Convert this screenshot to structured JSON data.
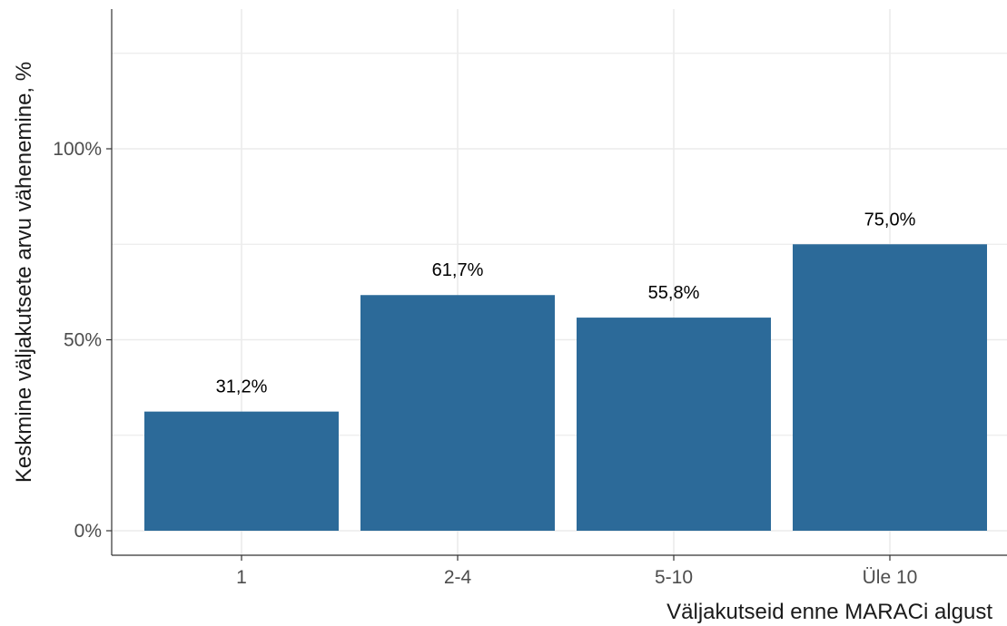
{
  "chart_data": {
    "type": "bar",
    "title": "",
    "xlabel": "Väljakutseid enne MARACi algust",
    "ylabel": "Keskmine väljakutsete arvu vähenemine, %",
    "categories": [
      "1",
      "2-4",
      "5-10",
      "Üle 10"
    ],
    "values": [
      31.2,
      61.7,
      55.8,
      75.0
    ],
    "data_labels": [
      "31,2%",
      "61,7%",
      "55,8%",
      "75,0%"
    ],
    "ylim": [
      0,
      135
    ],
    "yticks": [
      0,
      50,
      100
    ],
    "ytick_labels": [
      "0%",
      "50%",
      "100%"
    ],
    "y_minor_gridlines": [
      25,
      75,
      125
    ],
    "grid": true,
    "legend": "none",
    "colors": {
      "bar": "#2c6a99",
      "grid": "#ebebeb",
      "axis": "#333333"
    }
  }
}
